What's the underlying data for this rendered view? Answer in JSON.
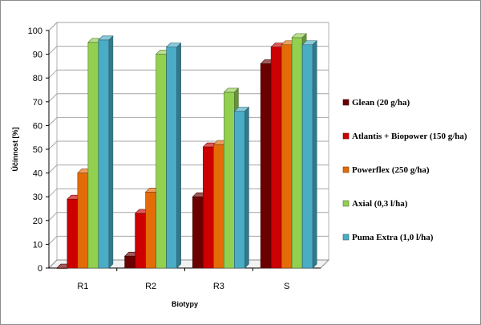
{
  "chart_data": {
    "type": "bar",
    "title": "",
    "xlabel": "Biotypy",
    "ylabel": "Účinnost [%]",
    "categories": [
      "R1",
      "R2",
      "R3",
      "S"
    ],
    "ylim": [
      0,
      100
    ],
    "yticks": [
      0,
      10,
      20,
      30,
      40,
      50,
      60,
      70,
      80,
      90,
      100
    ],
    "grid": true,
    "legend_position": "right",
    "three_d": true,
    "series": [
      {
        "name": "Glean (20 g/ha)",
        "color": "#6b0000",
        "values": [
          0,
          5,
          30,
          86
        ]
      },
      {
        "name": "Atlantis + Biopower (150 g/ha)",
        "color": "#cc0000",
        "values": [
          29,
          23,
          51,
          93
        ]
      },
      {
        "name": "Powerflex (250 g/ha)",
        "color": "#e36c09",
        "values": [
          40,
          32,
          52,
          94
        ]
      },
      {
        "name": "Axial (0,3 l/ha)",
        "color": "#92d050",
        "values": [
          95,
          90,
          74,
          97
        ]
      },
      {
        "name": "Puma Extra (1,0 l/ha)",
        "color": "#4bacc6",
        "values": [
          96,
          93,
          66,
          94
        ]
      }
    ]
  }
}
